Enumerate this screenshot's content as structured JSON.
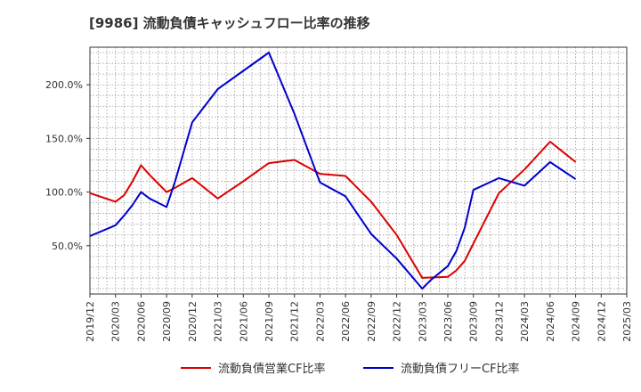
{
  "chart_data": {
    "type": "line",
    "title": "[9986]  流動負債キャッシュフロー比率の推移",
    "xlabel": "",
    "ylabel": "",
    "ylim": [
      5,
      235
    ],
    "y_ticks": [
      50,
      100,
      150,
      200
    ],
    "y_tick_labels": [
      "50.0%",
      "100.0%",
      "150.0%",
      "200.0%"
    ],
    "x_tick_labels": [
      "2019/12",
      "2020/03",
      "2020/06",
      "2020/09",
      "2020/12",
      "2021/03",
      "2021/06",
      "2021/09",
      "2021/12",
      "2022/03",
      "2022/06",
      "2022/09",
      "2022/12",
      "2023/03",
      "2023/06",
      "2023/09",
      "2023/12",
      "2024/03",
      "2024/06",
      "2024/09",
      "2024/12",
      "2025/03"
    ],
    "grid": true,
    "legend_position": "bottom",
    "series": [
      {
        "name": "流動負債営業CF比率",
        "color": "#dd0000",
        "x": [
          "2019/12",
          "2020/03",
          "2020/04",
          "2020/05",
          "2020/06",
          "2020/07",
          "2020/08",
          "2020/09",
          "2020/10",
          "2020/12",
          "2021/03",
          "2021/06",
          "2021/09",
          "2021/12",
          "2022/03",
          "2022/06",
          "2022/09",
          "2022/12",
          "2023/03",
          "2023/06",
          "2023/07",
          "2023/08",
          "2023/09",
          "2023/12",
          "2024/03",
          "2024/06",
          "2024/09"
        ],
        "values": [
          99,
          91,
          97,
          110,
          125,
          116,
          108,
          100,
          104,
          113,
          94,
          110,
          127,
          130,
          117,
          115,
          91,
          60,
          20,
          21,
          27,
          36,
          52,
          99,
          121,
          147,
          128
        ]
      },
      {
        "name": "流動負債フリーCF比率",
        "color": "#0000cc",
        "x": [
          "2019/12",
          "2020/03",
          "2020/04",
          "2020/05",
          "2020/06",
          "2020/07",
          "2020/08",
          "2020/09",
          "2020/10",
          "2020/12",
          "2021/03",
          "2021/06",
          "2021/09",
          "2021/12",
          "2022/03",
          "2022/06",
          "2022/09",
          "2022/12",
          "2023/03",
          "2023/04",
          "2023/06",
          "2023/07",
          "2023/08",
          "2023/09",
          "2023/12",
          "2024/03",
          "2024/06",
          "2024/09"
        ],
        "values": [
          59,
          69,
          78,
          88,
          100,
          94,
          90,
          86,
          110,
          165,
          196,
          213,
          230,
          173,
          109,
          96,
          61,
          38,
          10,
          18,
          31,
          45,
          67,
          102,
          113,
          106,
          128,
          112
        ]
      }
    ]
  }
}
